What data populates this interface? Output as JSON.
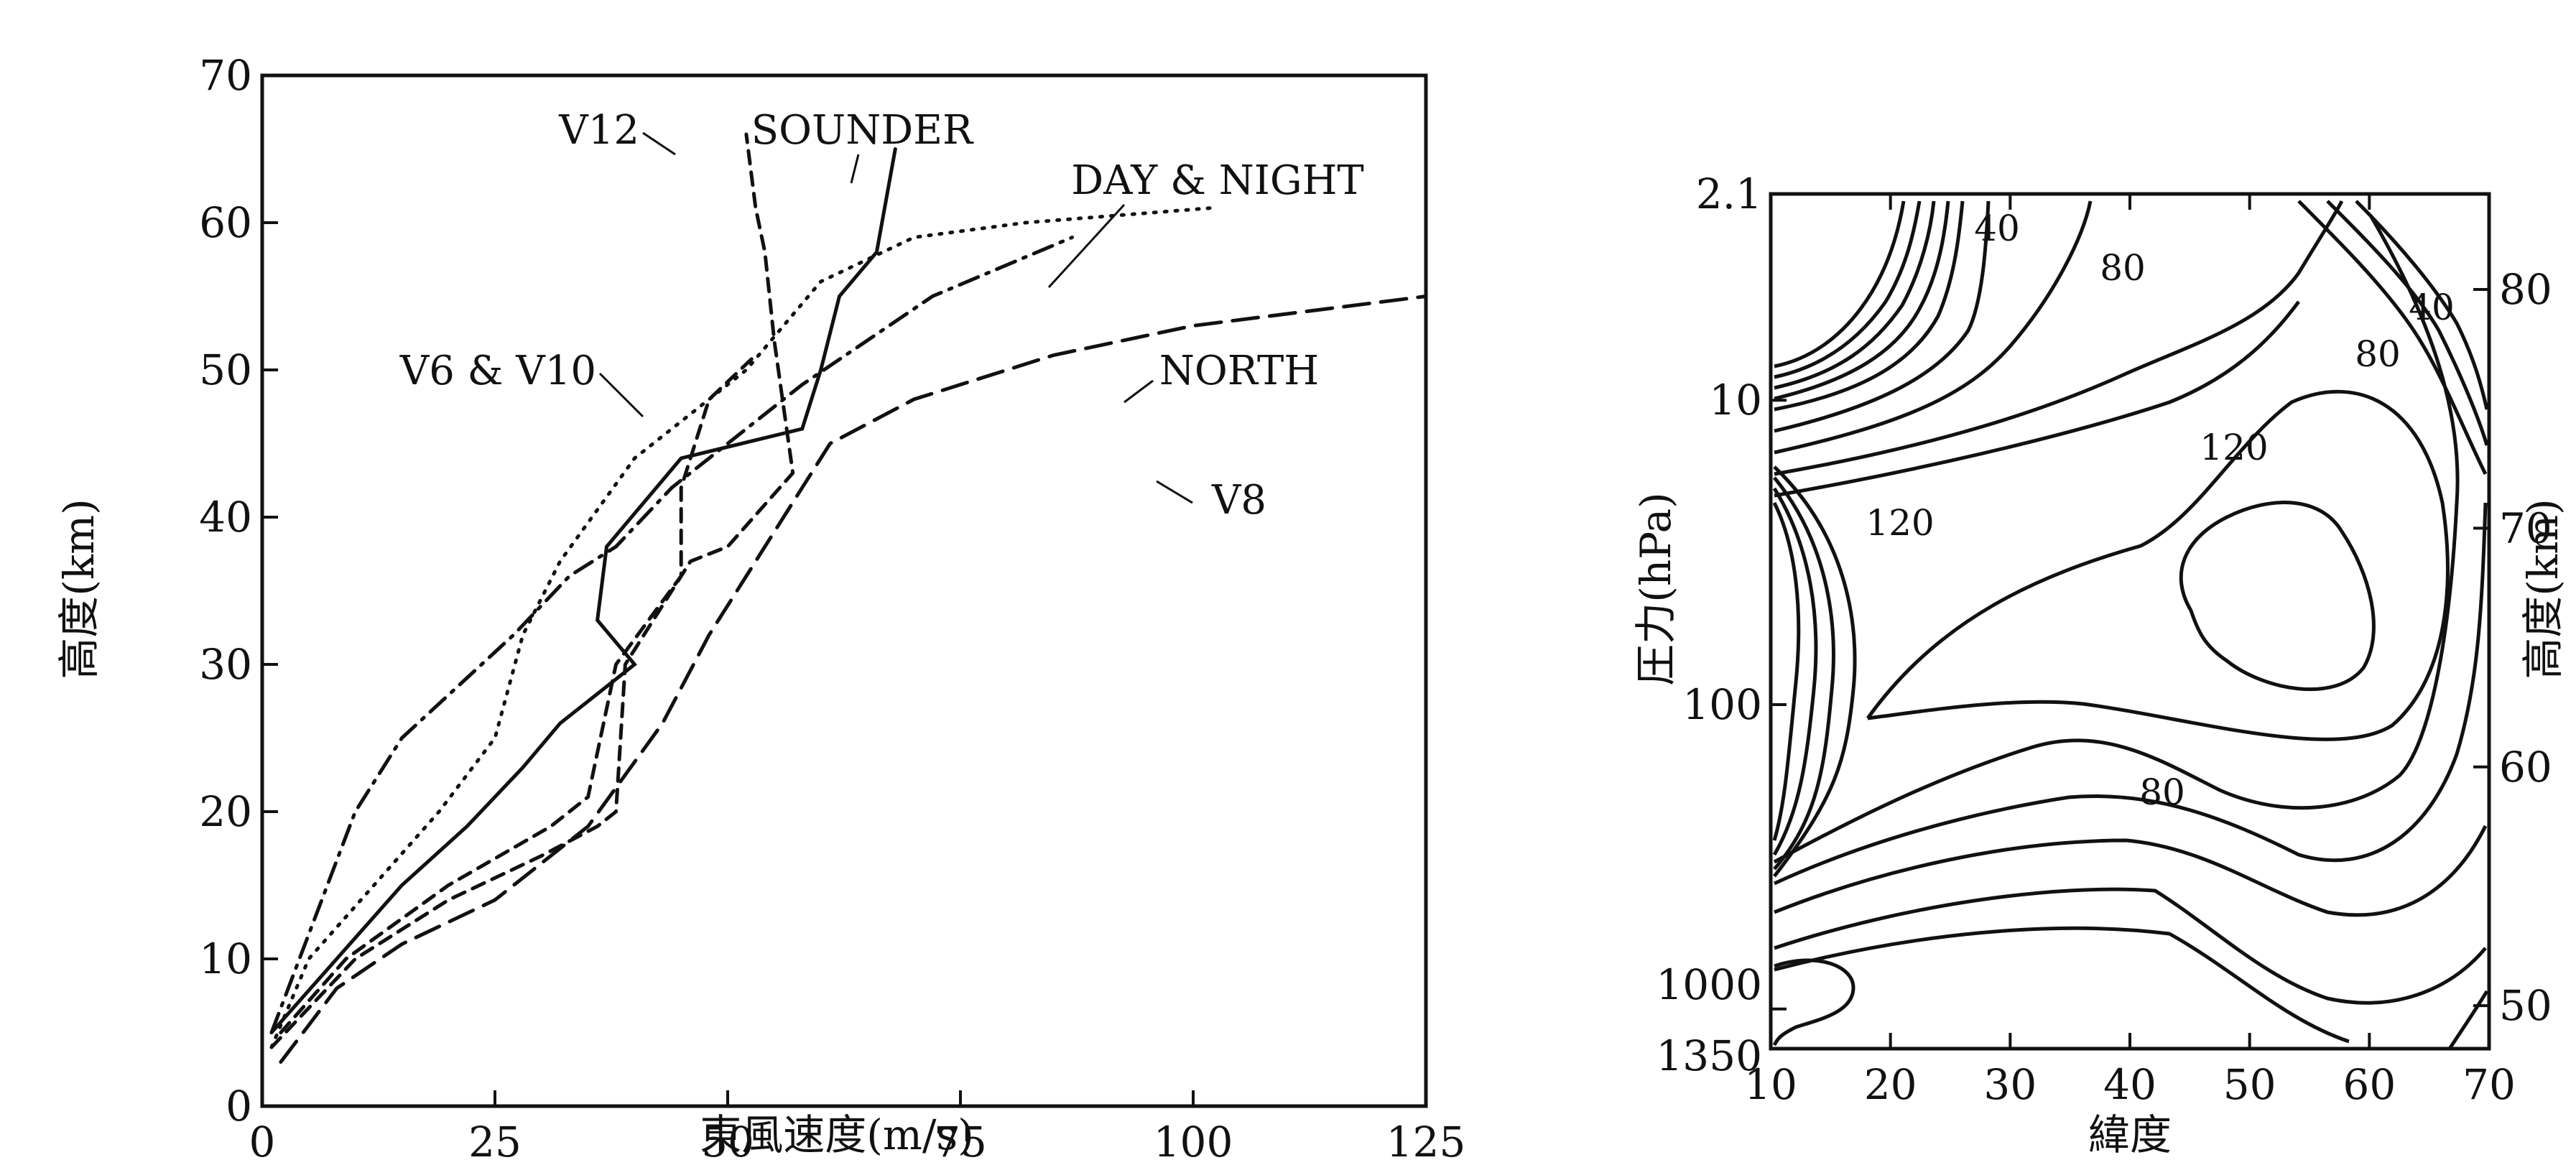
{
  "chart_data": [
    {
      "type": "line",
      "xlabel": "東風速度(m/s)",
      "ylabel": "高度(km)",
      "xlim": [
        0,
        125
      ],
      "ylim": [
        0,
        70
      ],
      "x_ticks": [
        "0",
        "25",
        "50",
        "75",
        "100",
        "125"
      ],
      "y_ticks": [
        "0",
        "10",
        "20",
        "30",
        "40",
        "50",
        "60",
        "70"
      ],
      "grid": false,
      "series": [
        {
          "name": "SOUNDER",
          "style": "solid",
          "points": [
            [
              1,
              5
            ],
            [
              8,
              10
            ],
            [
              15,
              15
            ],
            [
              22,
              19
            ],
            [
              28,
              23
            ],
            [
              32,
              26
            ],
            [
              38,
              29
            ],
            [
              40,
              30
            ],
            [
              36,
              33
            ],
            [
              37,
              38
            ],
            [
              45,
              44
            ],
            [
              58,
              46
            ],
            [
              60,
              50
            ],
            [
              62,
              55
            ],
            [
              66,
              58
            ],
            [
              68,
              65
            ]
          ]
        },
        {
          "name": "DAY & NIGHT",
          "style": "dotted",
          "points": [
            [
              1,
              4
            ],
            [
              5,
              10
            ],
            [
              12,
              15
            ],
            [
              19,
              20
            ],
            [
              25,
              25
            ],
            [
              28,
              32
            ],
            [
              32,
              37
            ],
            [
              40,
              44
            ],
            [
              52,
              50
            ],
            [
              60,
              56
            ],
            [
              70,
              59
            ],
            [
              82,
              60
            ],
            [
              102,
              61
            ]
          ]
        },
        {
          "name": "NORTH",
          "style": "dashdot",
          "points": [
            [
              1,
              5
            ],
            [
              4,
              10
            ],
            [
              10,
              20
            ],
            [
              15,
              25
            ],
            [
              27,
              32
            ],
            [
              33,
              36
            ],
            [
              38,
              38
            ],
            [
              44,
              42
            ],
            [
              50,
              45
            ],
            [
              58,
              49
            ],
            [
              65,
              52
            ],
            [
              72,
              55
            ],
            [
              87,
              59
            ]
          ]
        },
        {
          "name": "V12",
          "style": "dashed",
          "points": [
            [
              1,
              4
            ],
            [
              10,
              10
            ],
            [
              20,
              14
            ],
            [
              30,
              17
            ],
            [
              36,
              19
            ],
            [
              38,
              20
            ],
            [
              39,
              30
            ],
            [
              46,
              37
            ],
            [
              50,
              38
            ],
            [
              57,
              43
            ],
            [
              55,
              52
            ],
            [
              54,
              58
            ],
            [
              53,
              61
            ],
            [
              52,
              66
            ]
          ]
        },
        {
          "name": "V6 & V10",
          "style": "dashed",
          "points": [
            [
              2,
              5
            ],
            [
              9,
              10
            ],
            [
              20,
              15
            ],
            [
              31,
              19
            ],
            [
              35,
              21
            ],
            [
              38,
              30
            ],
            [
              45,
              36
            ],
            [
              45,
              42
            ],
            [
              48,
              48
            ],
            [
              53,
              51
            ]
          ]
        },
        {
          "name": "V8",
          "style": "longdash",
          "points": [
            [
              2,
              3
            ],
            [
              8,
              8
            ],
            [
              15,
              11
            ],
            [
              25,
              14
            ],
            [
              35,
              19
            ],
            [
              43,
              26
            ],
            [
              48,
              32
            ],
            [
              55,
              39
            ],
            [
              61,
              45
            ],
            [
              70,
              48
            ],
            [
              85,
              51
            ],
            [
              100,
              53
            ],
            [
              125,
              55
            ]
          ]
        }
      ]
    },
    {
      "type": "contour",
      "xlabel": "緯度",
      "ylabel": "圧力(hPa)",
      "y2label": "高度(km)",
      "x_ticks": [
        "10",
        "20",
        "30",
        "40",
        "50",
        "60",
        "70"
      ],
      "y_ticks": [
        "2.1",
        "10",
        "100",
        "1000",
        "1350"
      ],
      "y2_ticks": [
        "50",
        "60",
        "70",
        "80"
      ],
      "contour_labels": [
        "40",
        "80",
        "40",
        "80",
        "120",
        "120",
        "80"
      ]
    }
  ]
}
